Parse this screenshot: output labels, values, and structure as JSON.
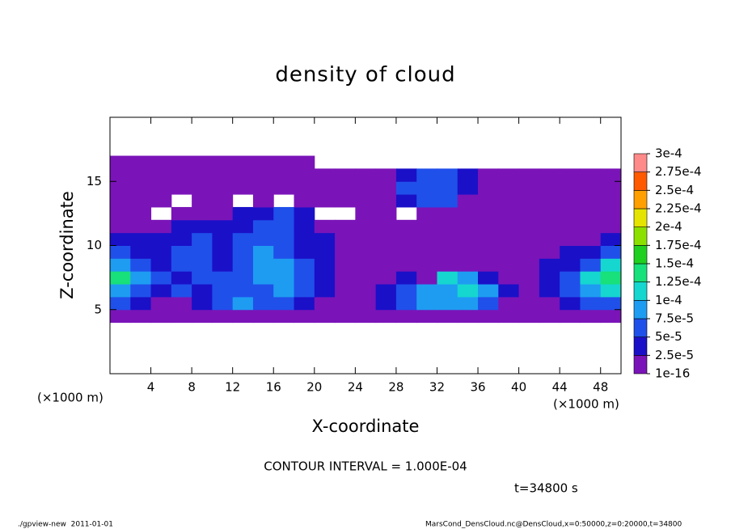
{
  "chart_data": {
    "type": "contour",
    "title": "density of cloud",
    "xlabel": "X-coordinate",
    "ylabel": "Z-coordinate",
    "xunit": "(×1000 m)",
    "yunit": "(×1000 m)",
    "contour_note": "CONTOUR INTERVAL = 1.000E-04",
    "time_label": "t=34800 s",
    "footer_left": "./gpview-new  2011-01-01",
    "footer_right": "MarsCond_DensCloud.nc@DensCloud,x=0:50000,z=0:20000,t=34800",
    "xlim": [
      0,
      50
    ],
    "ylim": [
      0,
      20
    ],
    "xticks": [
      4,
      8,
      12,
      16,
      20,
      24,
      28,
      32,
      36,
      40,
      44,
      48
    ],
    "yticks": [
      5,
      10,
      15
    ],
    "xbins": [
      0,
      2,
      4,
      6,
      8,
      10,
      12,
      14,
      16,
      18,
      20,
      22,
      24,
      26,
      28,
      30,
      32,
      34,
      36,
      38,
      40,
      42,
      44,
      46,
      48,
      50
    ],
    "zbins": [
      0,
      1,
      2,
      3,
      4,
      5,
      6,
      7,
      8,
      9,
      10,
      11,
      12,
      13,
      14,
      15,
      16,
      17,
      18,
      19,
      20
    ],
    "levels": [
      {
        "value": 1e-16,
        "label": "1e-16"
      },
      {
        "value": 2.5e-05,
        "label": "2.5e-5"
      },
      {
        "value": 5e-05,
        "label": "5e-5"
      },
      {
        "value": 7.5e-05,
        "label": "7.5e-5"
      },
      {
        "value": 0.0001,
        "label": "1e-4"
      },
      {
        "value": 0.000125,
        "label": "1.25e-4"
      },
      {
        "value": 0.00015,
        "label": "1.5e-4"
      },
      {
        "value": 0.000175,
        "label": "1.75e-4"
      },
      {
        "value": 0.0002,
        "label": "2e-4"
      },
      {
        "value": 0.000225,
        "label": "2.25e-4"
      },
      {
        "value": 0.00025,
        "label": "2.5e-4"
      },
      {
        "value": 0.000275,
        "label": "2.75e-4"
      },
      {
        "value": 0.0003,
        "label": "3e-4"
      }
    ],
    "colors": [
      "#7a14b8",
      "#1a10c8",
      "#2050ea",
      "#1e9cf2",
      "#16d6d0",
      "#18e07a",
      "#20d020",
      "#8ce000",
      "#e4e400",
      "#ffa000",
      "#ff5a00",
      "#ff8a8a"
    ],
    "values": [
      [
        null,
        null,
        null,
        null,
        null,
        null,
        null,
        null,
        null,
        null,
        null,
        null,
        null,
        null,
        null,
        null,
        null,
        null,
        null,
        null,
        null,
        null,
        null,
        null,
        null
      ],
      [
        null,
        null,
        null,
        null,
        null,
        null,
        null,
        null,
        null,
        null,
        null,
        null,
        null,
        null,
        null,
        null,
        null,
        null,
        null,
        null,
        null,
        null,
        null,
        null,
        null
      ],
      [
        null,
        null,
        null,
        null,
        null,
        null,
        null,
        null,
        null,
        null,
        null,
        null,
        null,
        null,
        null,
        null,
        null,
        null,
        null,
        null,
        null,
        null,
        null,
        null,
        null
      ],
      [
        null,
        null,
        null,
        null,
        null,
        null,
        null,
        null,
        null,
        null,
        null,
        null,
        null,
        null,
        null,
        null,
        null,
        null,
        null,
        null,
        null,
        null,
        null,
        null,
        null
      ],
      [
        1e-05,
        1e-05,
        1e-05,
        1e-05,
        1e-05,
        1e-05,
        1e-05,
        1e-05,
        1e-05,
        1e-05,
        1e-05,
        1e-05,
        1e-05,
        1e-05,
        1e-05,
        1e-05,
        1e-05,
        1e-05,
        1e-05,
        1e-05,
        1e-05,
        1e-05,
        1e-05,
        1e-05,
        1e-05
      ],
      [
        6e-05,
        3e-05,
        1e-05,
        1e-05,
        3e-05,
        6e-05,
        8e-05,
        6e-05,
        6e-05,
        3e-05,
        1e-05,
        1e-05,
        1e-05,
        3e-05,
        6e-05,
        8e-05,
        8e-05,
        8e-05,
        6e-05,
        1e-05,
        1e-05,
        1e-05,
        3e-05,
        6e-05,
        6e-05
      ],
      [
        8e-05,
        6e-05,
        3e-05,
        6e-05,
        3e-05,
        6e-05,
        6e-05,
        6e-05,
        8e-05,
        6e-05,
        3e-05,
        1e-05,
        1e-05,
        3e-05,
        6e-05,
        8e-05,
        8e-05,
        0.00011,
        8e-05,
        3e-05,
        1e-05,
        3e-05,
        6e-05,
        8e-05,
        0.00011
      ],
      [
        0.00013,
        8e-05,
        6e-05,
        3e-05,
        6e-05,
        6e-05,
        6e-05,
        8e-05,
        8e-05,
        6e-05,
        3e-05,
        1e-05,
        1e-05,
        1e-05,
        3e-05,
        1e-05,
        0.00011,
        8e-05,
        3e-05,
        1e-05,
        1e-05,
        3e-05,
        6e-05,
        0.00011,
        0.00013
      ],
      [
        8e-05,
        6e-05,
        3e-05,
        6e-05,
        6e-05,
        3e-05,
        6e-05,
        8e-05,
        8e-05,
        6e-05,
        3e-05,
        1e-05,
        1e-05,
        1e-05,
        1e-05,
        1e-05,
        1e-05,
        1e-05,
        1e-05,
        1e-05,
        1e-05,
        3e-05,
        3e-05,
        6e-05,
        0.00011
      ],
      [
        6e-05,
        3e-05,
        3e-05,
        6e-05,
        6e-05,
        3e-05,
        6e-05,
        8e-05,
        6e-05,
        3e-05,
        3e-05,
        1e-05,
        1e-05,
        1e-05,
        1e-05,
        1e-05,
        1e-05,
        1e-05,
        1e-05,
        1e-05,
        1e-05,
        1e-05,
        3e-05,
        3e-05,
        6e-05
      ],
      [
        3e-05,
        3e-05,
        3e-05,
        3e-05,
        6e-05,
        3e-05,
        6e-05,
        6e-05,
        6e-05,
        3e-05,
        3e-05,
        1e-05,
        1e-05,
        1e-05,
        1e-05,
        1e-05,
        1e-05,
        1e-05,
        1e-05,
        1e-05,
        1e-05,
        1e-05,
        1e-05,
        1e-05,
        3e-05
      ],
      [
        1e-05,
        1e-05,
        1e-05,
        3e-05,
        3e-05,
        3e-05,
        3e-05,
        6e-05,
        6e-05,
        3e-05,
        1e-05,
        1e-05,
        1e-05,
        1e-05,
        1e-05,
        1e-05,
        1e-05,
        1e-05,
        1e-05,
        1e-05,
        1e-05,
        1e-05,
        1e-05,
        1e-05,
        1e-05
      ],
      [
        1e-05,
        1e-05,
        null,
        1e-05,
        1e-05,
        1e-05,
        3e-05,
        3e-05,
        6e-05,
        3e-05,
        null,
        null,
        1e-05,
        1e-05,
        null,
        1e-05,
        1e-05,
        1e-05,
        1e-05,
        1e-05,
        1e-05,
        1e-05,
        1e-05,
        1e-05,
        1e-05
      ],
      [
        1e-05,
        1e-05,
        1e-05,
        null,
        1e-05,
        1e-05,
        null,
        1e-05,
        null,
        1e-05,
        1e-05,
        1e-05,
        1e-05,
        1e-05,
        3e-05,
        6e-05,
        6e-05,
        1e-05,
        1e-05,
        1e-05,
        1e-05,
        1e-05,
        1e-05,
        1e-05,
        1e-05
      ],
      [
        1e-05,
        1e-05,
        1e-05,
        1e-05,
        1e-05,
        1e-05,
        1e-05,
        1e-05,
        1e-05,
        1e-05,
        1e-05,
        1e-05,
        1e-05,
        1e-05,
        6e-05,
        6e-05,
        6e-05,
        3e-05,
        1e-05,
        1e-05,
        1e-05,
        1e-05,
        1e-05,
        1e-05,
        1e-05
      ],
      [
        1e-05,
        1e-05,
        1e-05,
        1e-05,
        1e-05,
        1e-05,
        1e-05,
        1e-05,
        1e-05,
        1e-05,
        1e-05,
        1e-05,
        1e-05,
        1e-05,
        3e-05,
        6e-05,
        6e-05,
        3e-05,
        1e-05,
        1e-05,
        1e-05,
        1e-05,
        1e-05,
        1e-05,
        1e-05
      ],
      [
        1e-05,
        1e-05,
        1e-05,
        1e-05,
        1e-05,
        1e-05,
        1e-05,
        1e-05,
        1e-05,
        1e-05,
        null,
        null,
        null,
        null,
        null,
        null,
        null,
        null,
        null,
        null,
        null,
        null,
        null,
        null,
        null
      ],
      [
        null,
        null,
        null,
        null,
        null,
        null,
        null,
        null,
        null,
        null,
        null,
        null,
        null,
        null,
        null,
        null,
        null,
        null,
        null,
        null,
        null,
        null,
        null,
        null,
        null
      ],
      [
        null,
        null,
        null,
        null,
        null,
        null,
        null,
        null,
        null,
        null,
        null,
        null,
        null,
        null,
        null,
        null,
        null,
        null,
        null,
        null,
        null,
        null,
        null,
        null,
        null
      ],
      [
        null,
        null,
        null,
        null,
        null,
        null,
        null,
        null,
        null,
        null,
        null,
        null,
        null,
        null,
        null,
        null,
        null,
        null,
        null,
        null,
        null,
        null,
        null,
        null,
        null
      ]
    ]
  }
}
